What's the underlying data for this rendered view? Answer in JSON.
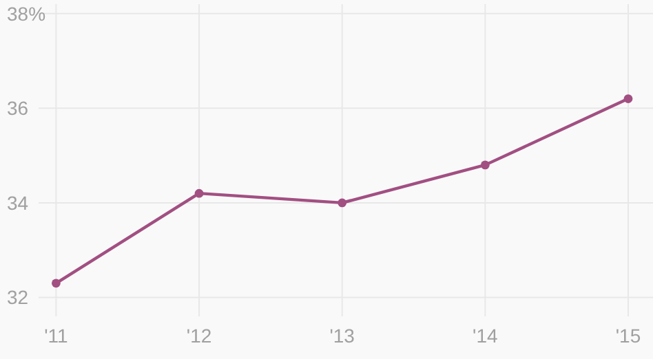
{
  "chart_data": {
    "type": "line",
    "categories": [
      "'11",
      "'12",
      "'13",
      "'14",
      "'15"
    ],
    "series": [
      {
        "color": "#a24f82",
        "values": [
          32.3,
          34.2,
          34.0,
          34.8,
          36.2
        ]
      }
    ],
    "ylim": [
      31.6,
      38.2
    ],
    "yticks": [
      32,
      34,
      36,
      {
        "value": 38,
        "label": "38%"
      }
    ],
    "grid": true,
    "marker": "circle",
    "line_style": "solid"
  }
}
